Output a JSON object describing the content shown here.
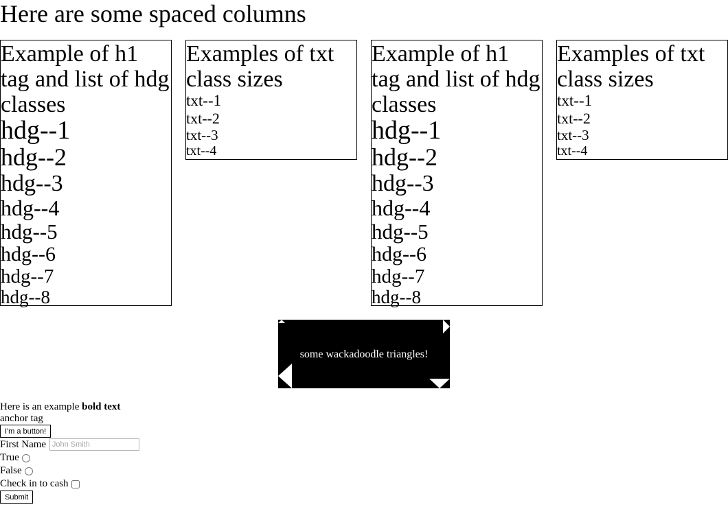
{
  "page": {
    "title": "Here are some spaced columns"
  },
  "columns": [
    {
      "heading": "Example of h1 tag and list of hdg classes",
      "items": [
        "hdg--1",
        "hdg--2",
        "hdg--3",
        "hdg--4",
        "hdg--5",
        "hdg--6",
        "hdg--7",
        "hdg--8"
      ]
    },
    {
      "heading": "Examples of txt class sizes",
      "items": [
        "txt--1",
        "txt--2",
        "txt--3",
        "txt--4"
      ]
    },
    {
      "heading": "Example of h1 tag and list of hdg classes",
      "items": [
        "hdg--1",
        "hdg--2",
        "hdg--3",
        "hdg--4",
        "hdg--5",
        "hdg--6",
        "hdg--7",
        "hdg--8"
      ]
    },
    {
      "heading": "Examples of txt class sizes",
      "items": [
        "txt--1",
        "txt--2",
        "txt--3",
        "txt--4"
      ]
    }
  ],
  "triangles": {
    "caption": "some wackadoodle triangles!",
    "background": "#000000",
    "triangle_color": "#ffffff"
  },
  "bottom": {
    "example_prefix": "Here is an example ",
    "bold_text": "bold text",
    "anchor_text": "anchor tag",
    "button_label": "I'm a button!",
    "first_name_label": "First Name",
    "first_name_placeholder": "John Smith",
    "first_name_value": "",
    "true_label": "True",
    "false_label": "False",
    "checkbox_label": "Check in to cash",
    "submit_label": "Submit"
  }
}
